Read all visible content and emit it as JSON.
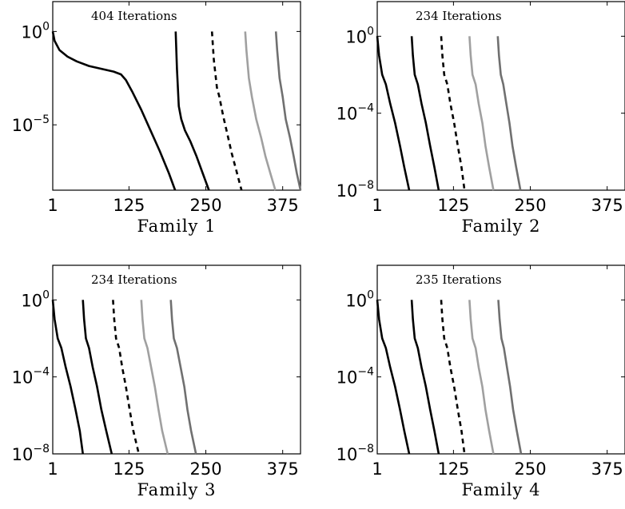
{
  "chart_data": [
    {
      "type": "line",
      "xlabel": "Family 1",
      "annotation": "404 Iterations",
      "xlim": [
        1,
        404
      ],
      "xticks": [
        1,
        125,
        250,
        375
      ],
      "xtick_labels": [
        "1",
        "125",
        "250",
        "375"
      ],
      "yscale": "log",
      "ylim_exp": [
        -8.5,
        1.6
      ],
      "yticks": [
        {
          "base": "10",
          "exp": "0",
          "value_exp": 0
        },
        {
          "base": "10",
          "exp": "−5",
          "value_exp": -5
        }
      ],
      "grid": false,
      "series": [
        {
          "color": "#000000",
          "dash": "",
          "x": [
            1,
            4,
            12,
            25,
            40,
            60,
            80,
            100,
            112,
            120,
            130,
            145,
            160,
            175,
            190,
            200
          ],
          "y_exp": [
            0,
            -0.5,
            -1.0,
            -1.35,
            -1.6,
            -1.85,
            -2.0,
            -2.15,
            -2.3,
            -2.6,
            -3.2,
            -4.2,
            -5.3,
            -6.4,
            -7.6,
            -8.5
          ]
        },
        {
          "color": "#000000",
          "dash": "",
          "x": [
            201,
            203,
            206,
            210,
            216,
            225,
            235,
            245,
            255
          ],
          "y_exp": [
            0,
            -2,
            -4,
            -4.7,
            -5.3,
            -5.9,
            -6.7,
            -7.6,
            -8.5
          ]
        },
        {
          "color": "#000000",
          "dash": "6,5",
          "x": [
            260,
            263,
            268,
            272,
            278,
            285,
            292,
            300,
            308
          ],
          "y_exp": [
            0,
            -1.5,
            -3,
            -3.5,
            -4.5,
            -5.5,
            -6.5,
            -7.5,
            -8.5
          ]
        },
        {
          "color": "#a0a0a0",
          "dash": "",
          "x": [
            314,
            316,
            320,
            325,
            332,
            340,
            347,
            355,
            363
          ],
          "y_exp": [
            0,
            -1,
            -2.5,
            -3.5,
            -4.7,
            -5.7,
            -6.7,
            -7.6,
            -8.5
          ]
        },
        {
          "color": "#707070",
          "dash": "",
          "x": [
            364,
            366,
            370,
            375,
            380,
            387,
            393,
            398,
            404
          ],
          "y_exp": [
            0,
            -1,
            -2.5,
            -3.5,
            -4.7,
            -5.7,
            -6.7,
            -7.6,
            -8.5
          ]
        }
      ]
    },
    {
      "type": "line",
      "xlabel": "Family 2",
      "annotation": "234 Iterations",
      "xlim": [
        1,
        404
      ],
      "xticks": [
        1,
        125,
        250,
        375
      ],
      "xtick_labels": [
        "1",
        "125",
        "250",
        "375"
      ],
      "yscale": "log",
      "ylim_exp": [
        -8,
        1.8
      ],
      "yticks": [
        {
          "base": "10",
          "exp": "0",
          "value_exp": 0
        },
        {
          "base": "10",
          "exp": "−4",
          "value_exp": -4
        },
        {
          "base": "10",
          "exp": "−8",
          "value_exp": -8
        }
      ],
      "grid": false,
      "series": [
        {
          "color": "#000000",
          "dash": "",
          "x": [
            1,
            4,
            9,
            15,
            22,
            30,
            38,
            45,
            53
          ],
          "y_exp": [
            0,
            -1,
            -2,
            -2.5,
            -3.5,
            -4.5,
            -5.7,
            -6.8,
            -8
          ]
        },
        {
          "color": "#000000",
          "dash": "",
          "x": [
            57,
            59,
            62,
            67,
            73,
            80,
            87,
            94,
            101
          ],
          "y_exp": [
            0,
            -1,
            -2,
            -2.5,
            -3.5,
            -4.5,
            -5.7,
            -6.8,
            -8
          ]
        },
        {
          "color": "#000000",
          "dash": "6,5",
          "x": [
            105,
            107,
            110,
            115,
            120,
            126,
            132,
            138,
            143
          ],
          "y_exp": [
            0,
            -1,
            -2,
            -2.5,
            -3.5,
            -4.5,
            -5.7,
            -6.8,
            -8
          ]
        },
        {
          "color": "#a0a0a0",
          "dash": "",
          "x": [
            151,
            153,
            156,
            161,
            166,
            172,
            177,
            183,
            190
          ],
          "y_exp": [
            0,
            -1,
            -2,
            -2.5,
            -3.5,
            -4.5,
            -5.7,
            -6.8,
            -8
          ]
        },
        {
          "color": "#707070",
          "dash": "",
          "x": [
            197,
            199,
            202,
            206,
            211,
            216,
            221,
            227,
            234
          ],
          "y_exp": [
            0,
            -1,
            -2,
            -2.5,
            -3.5,
            -4.5,
            -5.7,
            -6.8,
            -8
          ]
        }
      ]
    },
    {
      "type": "line",
      "xlabel": "Family 3",
      "annotation": "234 Iterations",
      "xlim": [
        1,
        404
      ],
      "xticks": [
        1,
        125,
        250,
        375
      ],
      "xtick_labels": [
        "1",
        "125",
        "250",
        "375"
      ],
      "yscale": "log",
      "ylim_exp": [
        -8,
        1.8
      ],
      "yticks": [
        {
          "base": "10",
          "exp": "0",
          "value_exp": 0
        },
        {
          "base": "10",
          "exp": "−4",
          "value_exp": -4
        },
        {
          "base": "10",
          "exp": "−8",
          "value_exp": -8
        }
      ],
      "grid": false,
      "series": [
        {
          "color": "#000000",
          "dash": "",
          "x": [
            1,
            4,
            9,
            15,
            22,
            30,
            38,
            45,
            50
          ],
          "y_exp": [
            0,
            -1,
            -2,
            -2.5,
            -3.5,
            -4.5,
            -5.7,
            -6.8,
            -8
          ]
        },
        {
          "color": "#000000",
          "dash": "",
          "x": [
            50,
            52,
            55,
            60,
            66,
            73,
            80,
            88,
            97
          ],
          "y_exp": [
            0,
            -1,
            -2,
            -2.5,
            -3.5,
            -4.5,
            -5.7,
            -6.8,
            -8
          ]
        },
        {
          "color": "#000000",
          "dash": "6,5",
          "x": [
            99,
            101,
            104,
            109,
            114,
            120,
            126,
            132,
            141
          ],
          "y_exp": [
            0,
            -1,
            -2,
            -2.5,
            -3.5,
            -4.5,
            -5.7,
            -6.8,
            -8
          ]
        },
        {
          "color": "#a0a0a0",
          "dash": "",
          "x": [
            145,
            147,
            150,
            155,
            161,
            167,
            173,
            179,
            188
          ],
          "y_exp": [
            0,
            -1,
            -2,
            -2.5,
            -3.5,
            -4.5,
            -5.7,
            -6.8,
            -8
          ]
        },
        {
          "color": "#707070",
          "dash": "",
          "x": [
            193,
            195,
            198,
            203,
            209,
            215,
            220,
            226,
            234
          ],
          "y_exp": [
            0,
            -1,
            -2,
            -2.5,
            -3.5,
            -4.5,
            -5.7,
            -6.8,
            -8
          ]
        }
      ]
    },
    {
      "type": "line",
      "xlabel": "Family 4",
      "annotation": "235 Iterations",
      "xlim": [
        1,
        404
      ],
      "xticks": [
        1,
        125,
        250,
        375
      ],
      "xtick_labels": [
        "1",
        "125",
        "250",
        "375"
      ],
      "yscale": "log",
      "ylim_exp": [
        -8,
        1.8
      ],
      "yticks": [
        {
          "base": "10",
          "exp": "0",
          "value_exp": 0
        },
        {
          "base": "10",
          "exp": "−4",
          "value_exp": -4
        },
        {
          "base": "10",
          "exp": "−8",
          "value_exp": -8
        }
      ],
      "grid": false,
      "series": [
        {
          "color": "#000000",
          "dash": "",
          "x": [
            1,
            4,
            9,
            15,
            22,
            30,
            38,
            45,
            53
          ],
          "y_exp": [
            0,
            -1,
            -2,
            -2.5,
            -3.5,
            -4.5,
            -5.7,
            -6.8,
            -8
          ]
        },
        {
          "color": "#000000",
          "dash": "",
          "x": [
            57,
            59,
            62,
            67,
            73,
            80,
            87,
            94,
            101
          ],
          "y_exp": [
            0,
            -1,
            -2,
            -2.5,
            -3.5,
            -4.5,
            -5.7,
            -6.8,
            -8
          ]
        },
        {
          "color": "#000000",
          "dash": "6,5",
          "x": [
            105,
            107,
            110,
            115,
            120,
            126,
            132,
            138,
            143
          ],
          "y_exp": [
            0,
            -1,
            -2,
            -2.5,
            -3.5,
            -4.5,
            -5.7,
            -6.8,
            -8
          ]
        },
        {
          "color": "#a0a0a0",
          "dash": "",
          "x": [
            151,
            153,
            156,
            161,
            166,
            172,
            177,
            183,
            190
          ],
          "y_exp": [
            0,
            -1,
            -2,
            -2.5,
            -3.5,
            -4.5,
            -5.7,
            -6.8,
            -8
          ]
        },
        {
          "color": "#707070",
          "dash": "",
          "x": [
            198,
            200,
            203,
            207,
            212,
            217,
            222,
            228,
            235
          ],
          "y_exp": [
            0,
            -1,
            -2,
            -2.5,
            -3.5,
            -4.5,
            -5.7,
            -6.8,
            -8
          ]
        }
      ]
    }
  ]
}
